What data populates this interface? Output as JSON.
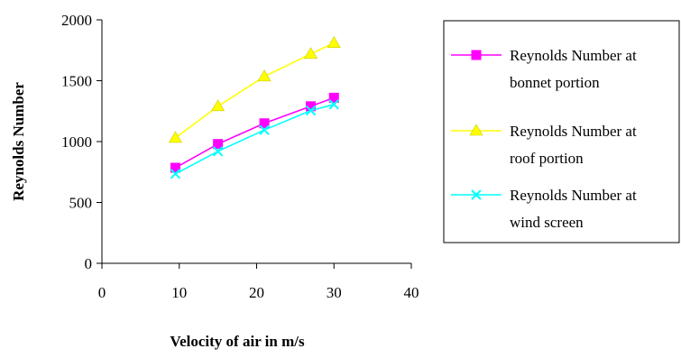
{
  "chart_data": {
    "type": "line",
    "title": "",
    "xlabel": "Velocity of air in m/s",
    "ylabel": "Reynolds Number",
    "xlim": [
      0,
      40
    ],
    "ylim": [
      0,
      2000
    ],
    "xticks": [
      0,
      10,
      20,
      30,
      40
    ],
    "yticks": [
      0,
      500,
      1000,
      1500,
      2000
    ],
    "grid": false,
    "legend_position": "right",
    "series": [
      {
        "name": "Reynolds Number at bonnet portion",
        "legend_lines": [
          "Reynolds Number at",
          "bonnet portion"
        ],
        "color": "#ff00ff",
        "marker": "square",
        "x": [
          9.5,
          15,
          21,
          27,
          30
        ],
        "y": [
          785,
          980,
          1150,
          1290,
          1360
        ]
      },
      {
        "name": "Reynolds Number at roof portion",
        "legend_lines": [
          "Reynolds Number at",
          "roof portion"
        ],
        "color": "#ffff00",
        "marker": "triangle",
        "x": [
          9.5,
          15,
          21,
          27,
          30
        ],
        "y": [
          1030,
          1290,
          1535,
          1720,
          1810
        ]
      },
      {
        "name": "Reynolds Number at wind screen",
        "legend_lines": [
          "Reynolds Number at",
          "wind screen"
        ],
        "color": "#00ffff",
        "marker": "x",
        "x": [
          9.5,
          15,
          21,
          27,
          30
        ],
        "y": [
          735,
          920,
          1095,
          1255,
          1305
        ]
      }
    ]
  }
}
